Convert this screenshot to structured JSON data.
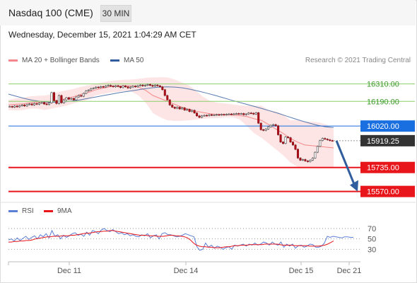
{
  "header": {
    "title": "Nasdaq 100 (CME)",
    "timeframe": "30 MIN"
  },
  "timestamp": "Wednesday, December 15, 2021 1:04:29 AM CET",
  "legend": {
    "bollinger": {
      "label": "MA 20 + Bollinger Bands",
      "color": "#f4878a"
    },
    "ma50": {
      "label": "MA 50",
      "color": "#2f5d9e"
    }
  },
  "copyright": "Research © 2021 Trading Central",
  "rsi_legend": {
    "rsi": {
      "label": "RSI",
      "color": "#5b7fd6"
    },
    "ma9": {
      "label": "9MA",
      "color": "#e8151b"
    }
  },
  "chart_data": [
    {
      "type": "candlestick",
      "ylim": [
        15500,
        16420
      ],
      "x_ticks": [
        "Dec 11",
        "Dec 14",
        "Dec 15",
        "Dec 21"
      ],
      "levels": [
        {
          "value": 16310,
          "label": "16310.00",
          "kind": "resistance",
          "color": "#8ccf6a"
        },
        {
          "value": 16190,
          "label": "16190.00",
          "kind": "resistance",
          "color": "#8ccf6a"
        },
        {
          "value": 16020,
          "label": "16020.00",
          "kind": "pivot",
          "color": "#1a6fe0"
        },
        {
          "value": 15919.25,
          "label": "15919.25",
          "kind": "last",
          "color": "#333333"
        },
        {
          "value": 15735,
          "label": "15735.00",
          "kind": "support",
          "color": "#e8151b"
        },
        {
          "value": 15570,
          "label": "15570.00",
          "kind": "support",
          "color": "#e8151b"
        }
      ],
      "close": [
        16155,
        16150,
        16158,
        16152,
        16160,
        16165,
        16158,
        16168,
        16172,
        16165,
        16175,
        16170,
        16178,
        16182,
        16172,
        16168,
        16180,
        16250,
        16195,
        16175,
        16230,
        16180,
        16200,
        16215,
        16205,
        16210,
        16200,
        16220,
        16230,
        16225,
        16245,
        16262,
        16268,
        16278,
        16282,
        16288,
        16285,
        16292,
        16288,
        16296,
        16300,
        16295,
        16290,
        16298,
        16292,
        16285,
        16296,
        16290,
        16282,
        16288,
        16295,
        16290,
        16298,
        16302,
        16296,
        16300,
        16306,
        16300,
        16294,
        16302,
        16297,
        16290,
        16270,
        16230,
        16200,
        16165,
        16150,
        16142,
        16150,
        16138,
        16145,
        16130,
        16135,
        16120,
        16128,
        16110,
        16090,
        16080,
        16090,
        16094,
        16092,
        16098,
        16095,
        16097,
        16099,
        16096,
        16100,
        16098,
        16101,
        16103,
        16101,
        16104,
        16106,
        16104,
        16106,
        16098,
        16103,
        16110,
        16108,
        16102,
        16112,
        16040,
        15995,
        15990,
        16000,
        16015,
        16025,
        16030,
        16022,
        15960,
        15910,
        15900,
        15945,
        15940,
        15910,
        15890,
        15860,
        15800,
        15785,
        15790,
        15780,
        15775,
        15785,
        15800,
        15840,
        15880,
        15920,
        15935,
        15930,
        15925,
        15920,
        15919
      ],
      "ma20_bollinger": {
        "upper": [
          16200,
          16210,
          16215,
          16225,
          16228,
          16230,
          16240,
          16255,
          16265,
          16275,
          16290,
          16300,
          16310,
          16320,
          16330,
          16335,
          16338,
          16340,
          16345,
          16352,
          16355,
          16356,
          16355,
          16340,
          16320,
          16300,
          16260,
          16220,
          16190,
          16180,
          16175,
          16170,
          16162,
          16160,
          16160,
          16160,
          16130,
          16120,
          16100,
          16060,
          16060,
          16050,
          16050,
          16045,
          16030,
          16000
        ],
        "lower": [
          16130,
          16128,
          16130,
          16140,
          16140,
          16130,
          16140,
          16150,
          16160,
          16175,
          16190,
          16200,
          16230,
          16240,
          16250,
          16255,
          16262,
          16258,
          16230,
          16180,
          16110,
          16080,
          16060,
          16055,
          16056,
          16060,
          16065,
          16070,
          16075,
          16075,
          16080,
          16080,
          16065,
          16020,
          15970,
          15940,
          15900,
          15860,
          15820,
          15770,
          15740,
          15730,
          15735,
          15730,
          15735,
          15740
        ],
        "mid": [
          16165,
          16170,
          16172,
          16180,
          16185,
          16178,
          16188,
          16198,
          16210,
          16222,
          16238,
          16250,
          16268,
          16280,
          16290,
          16294,
          16298,
          16296,
          16288,
          16265,
          16230,
          16210,
          16190,
          16170,
          16150,
          16135,
          16122,
          16112,
          16104,
          16100,
          16098,
          16096,
          16092,
          16085,
          16070,
          16060,
          16030,
          16000,
          15970,
          15935,
          15910,
          15890,
          15885,
          15880,
          15875,
          15870
        ]
      },
      "ma50": [
        16240,
        16225,
        16210,
        16198,
        16190,
        16185,
        16184,
        16186,
        16192,
        16200,
        16210,
        16220,
        16230,
        16240,
        16250,
        16258,
        16266,
        16275,
        16282,
        16288,
        16290,
        16288,
        16282,
        16272,
        16260,
        16246,
        16232,
        16216,
        16200,
        16185,
        16170,
        16155,
        16140,
        16124,
        16108,
        16090,
        16072,
        16055,
        16040,
        16025,
        16015,
        16010
      ]
    },
    {
      "type": "line",
      "name": "RSI panel",
      "ylim": [
        10,
        85
      ],
      "y_ticks": [
        70,
        50,
        30
      ],
      "x_ticks": [
        "Dec 11",
        "Dec 14",
        "Dec 15",
        "Dec 21"
      ],
      "series": [
        {
          "name": "RSI",
          "color": "#5b7fd6",
          "values": [
            48,
            50,
            46,
            52,
            47,
            51,
            55,
            49,
            53,
            56,
            50,
            58,
            54,
            60,
            52,
            66,
            55,
            58,
            50,
            57,
            53,
            56,
            60,
            62,
            57,
            59,
            55,
            63,
            57,
            66,
            64,
            60,
            67,
            70,
            66,
            64,
            68,
            64,
            60,
            62,
            58,
            60,
            56,
            58,
            55,
            54,
            58,
            56,
            60,
            52,
            56,
            58,
            50,
            60,
            62,
            58,
            58,
            56,
            54,
            55,
            57,
            60,
            58,
            56,
            54,
            35,
            28,
            30,
            42,
            34,
            38,
            32,
            36,
            34,
            30,
            33,
            35,
            30,
            38,
            36,
            38,
            40,
            36,
            40,
            38,
            42,
            38,
            40,
            44,
            42,
            38,
            44,
            40,
            38,
            44,
            34,
            40,
            36,
            40,
            32,
            37,
            38,
            34,
            36,
            40,
            39,
            34,
            34,
            36,
            42,
            55,
            53,
            55,
            54,
            53,
            52,
            54,
            54,
            53,
            53
          ]
        },
        {
          "name": "9MA",
          "color": "#e8151b",
          "values": [
            44,
            44,
            45,
            45,
            46,
            46,
            47,
            47,
            48,
            50,
            51,
            52,
            53,
            54,
            54,
            55,
            55,
            55,
            56,
            56,
            56,
            57,
            57,
            58,
            59,
            60,
            61,
            61,
            62,
            63,
            64,
            64,
            65,
            65,
            66,
            66,
            65,
            64,
            63,
            62,
            61,
            60,
            59,
            58,
            57,
            57,
            57,
            56,
            56,
            56,
            55,
            55,
            55,
            56,
            57,
            57,
            56,
            56,
            55,
            54,
            52,
            48,
            42,
            38,
            36,
            35,
            35,
            34,
            34,
            33,
            33,
            33,
            34,
            35,
            35,
            36,
            37,
            37,
            38,
            38,
            38,
            39,
            39,
            39,
            39,
            39,
            40,
            40,
            40,
            40,
            40,
            39,
            38,
            38,
            38,
            38,
            37,
            37,
            37,
            37,
            37,
            36,
            36,
            36,
            36,
            37,
            38,
            40,
            43,
            46
          ]
        }
      ]
    }
  ]
}
